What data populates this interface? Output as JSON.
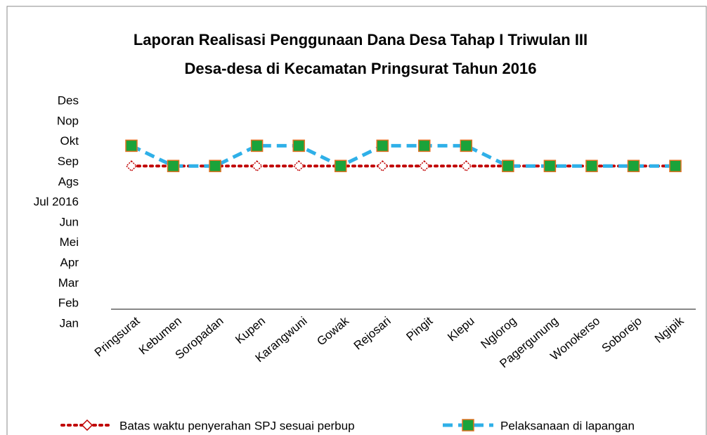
{
  "chart_data": {
    "type": "line",
    "title": [
      "Laporan Realisasi Penggunaan Dana Desa Tahap I Triwulan III",
      "Desa-desa di Kecamatan Pringsurat Tahun 2016"
    ],
    "categories": [
      "Pringsurat",
      "Kebumen",
      "Soropadan",
      "Kupen",
      "Karangwuni",
      "Gowak",
      "Rejosari",
      "Pingit",
      "Klepu",
      "Nglorog",
      "Pagergunung",
      "Wonokerso",
      "Soborejo",
      "Ngipik"
    ],
    "series": [
      {
        "name": "Batas waktu penyerahan SPJ sesuai perbup",
        "color": "#c00000",
        "values": [
          8.8,
          8.8,
          8.8,
          8.8,
          8.8,
          8.8,
          8.8,
          8.8,
          8.8,
          8.8,
          8.8,
          8.8,
          8.8,
          8.8
        ]
      },
      {
        "name": "Pelaksanaan di lapangan",
        "color": "#2fb0e8",
        "values": [
          9.8,
          8.8,
          8.8,
          9.8,
          9.8,
          8.8,
          9.8,
          9.8,
          9.8,
          8.8,
          8.8,
          8.8,
          8.8,
          8.8
        ]
      }
    ],
    "ylim": [
      1,
      12
    ],
    "yticks": [
      {
        "value": 1,
        "label": "Jan"
      },
      {
        "value": 2,
        "label": "Feb"
      },
      {
        "value": 3,
        "label": "Mar"
      },
      {
        "value": 4,
        "label": "Apr"
      },
      {
        "value": 5,
        "label": "Mei"
      },
      {
        "value": 6,
        "label": "Jun"
      },
      {
        "value": 7,
        "label": "Jul 2016"
      },
      {
        "value": 8,
        "label": "Ags"
      },
      {
        "value": 9,
        "label": "Sep"
      },
      {
        "value": 10,
        "label": "Okt"
      },
      {
        "value": 11,
        "label": "Nop"
      },
      {
        "value": 12,
        "label": "Des"
      }
    ]
  }
}
